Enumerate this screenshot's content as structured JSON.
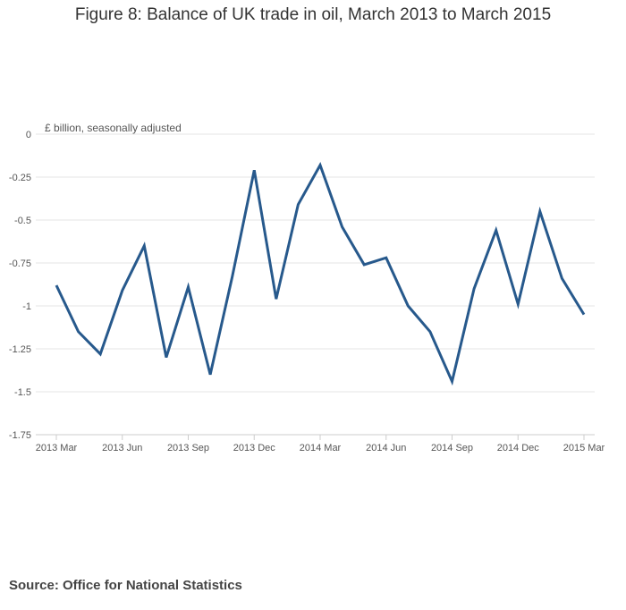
{
  "title": "Figure 8: Balance of UK trade in oil, March 2013 to March 2015",
  "source": "Source: Office for National Statistics",
  "chart_data": {
    "type": "line",
    "title": "Figure 8: Balance of UK trade in oil, March 2013 to March 2015",
    "ylabel": "£ billion, seasonally adjusted",
    "xlabel": "",
    "ylim": [
      -1.75,
      0
    ],
    "yticks": [
      0,
      -0.25,
      -0.5,
      -0.75,
      -1,
      -1.25,
      -1.5,
      -1.75
    ],
    "ytick_labels": [
      "0",
      "-0.25",
      "-0.5",
      "-0.75",
      "-1",
      "-1.25",
      "-1.5",
      "-1.75"
    ],
    "x": [
      "2013 Mar",
      "2013 Apr",
      "2013 May",
      "2013 Jun",
      "2013 Jul",
      "2013 Aug",
      "2013 Sep",
      "2013 Oct",
      "2013 Nov",
      "2013 Dec",
      "2014 Jan",
      "2014 Feb",
      "2014 Mar",
      "2014 Apr",
      "2014 May",
      "2014 Jun",
      "2014 Jul",
      "2014 Aug",
      "2014 Sep",
      "2014 Oct",
      "2014 Nov",
      "2014 Dec",
      "2015 Jan",
      "2015 Feb",
      "2015 Mar"
    ],
    "xtick_labels": [
      "2013 Mar",
      "2013 Jun",
      "2013 Sep",
      "2013 Dec",
      "2014 Mar",
      "2014 Jun",
      "2014 Sep",
      "2014 Dec",
      "2015 Mar"
    ],
    "xtick_indices": [
      0,
      3,
      6,
      9,
      12,
      15,
      18,
      21,
      24
    ],
    "series": [
      {
        "name": "Balance of UK trade in oil",
        "color": "#27598c",
        "values": [
          -0.88,
          -1.15,
          -1.28,
          -0.91,
          -0.65,
          -1.3,
          -0.89,
          -1.4,
          -0.83,
          -0.21,
          -0.96,
          -0.41,
          -0.18,
          -0.54,
          -0.76,
          -0.72,
          -1.0,
          -1.15,
          -1.44,
          -0.9,
          -0.56,
          -0.99,
          -0.45,
          -0.84,
          -1.05
        ]
      }
    ],
    "grid": true,
    "legend": "none"
  }
}
